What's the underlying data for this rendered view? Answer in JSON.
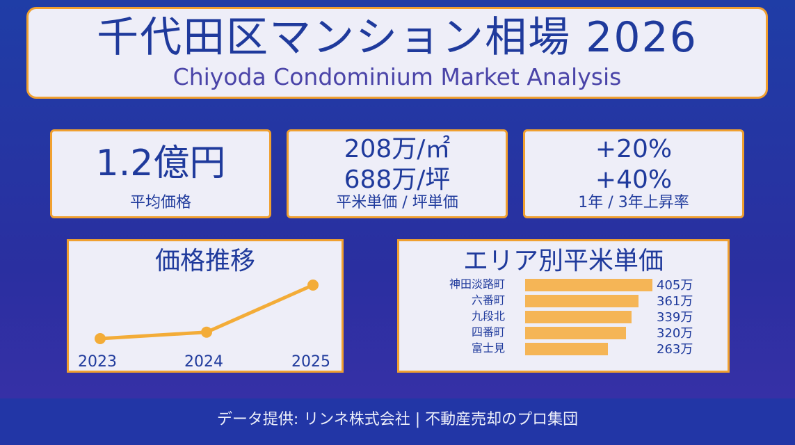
{
  "header": {
    "title": "千代田区マンション相場 2026",
    "subtitle": "Chiyoda Condominium Market Analysis"
  },
  "stats": {
    "avg_price": {
      "value": "1.2億円",
      "label": "平均価格"
    },
    "unit_price": {
      "per_sqm": "208万/㎡",
      "per_tsubo": "688万/坪",
      "label": "平米単価 / 坪単価"
    },
    "growth": {
      "one_year": "+20%",
      "three_year": "+40%",
      "label": "1年 / 3年上昇率"
    }
  },
  "price_trend": {
    "title": "価格推移",
    "years": [
      "2023",
      "2024",
      "2025"
    ],
    "relative_levels": [
      0.0,
      0.12,
      1.0
    ],
    "line_color": "#f3ac38"
  },
  "area_prices": {
    "title": "エリア別平米単価",
    "bar_color": "#f5b556",
    "rows": [
      {
        "name": "神田淡路町",
        "value": 405,
        "label": "405万"
      },
      {
        "name": "六番町",
        "value": 361,
        "label": "361万"
      },
      {
        "name": "九段北",
        "value": 339,
        "label": "339万"
      },
      {
        "name": "四番町",
        "value": 320,
        "label": "320万"
      },
      {
        "name": "富士見",
        "value": 263,
        "label": "263万"
      }
    ]
  },
  "footer": {
    "text": "データ提供: リンネ株式会社 | 不動産売却のプロ集団"
  },
  "colors": {
    "accent_border": "#f0a030",
    "text_primary": "#1f3a9c",
    "background": "#2a34a4"
  }
}
